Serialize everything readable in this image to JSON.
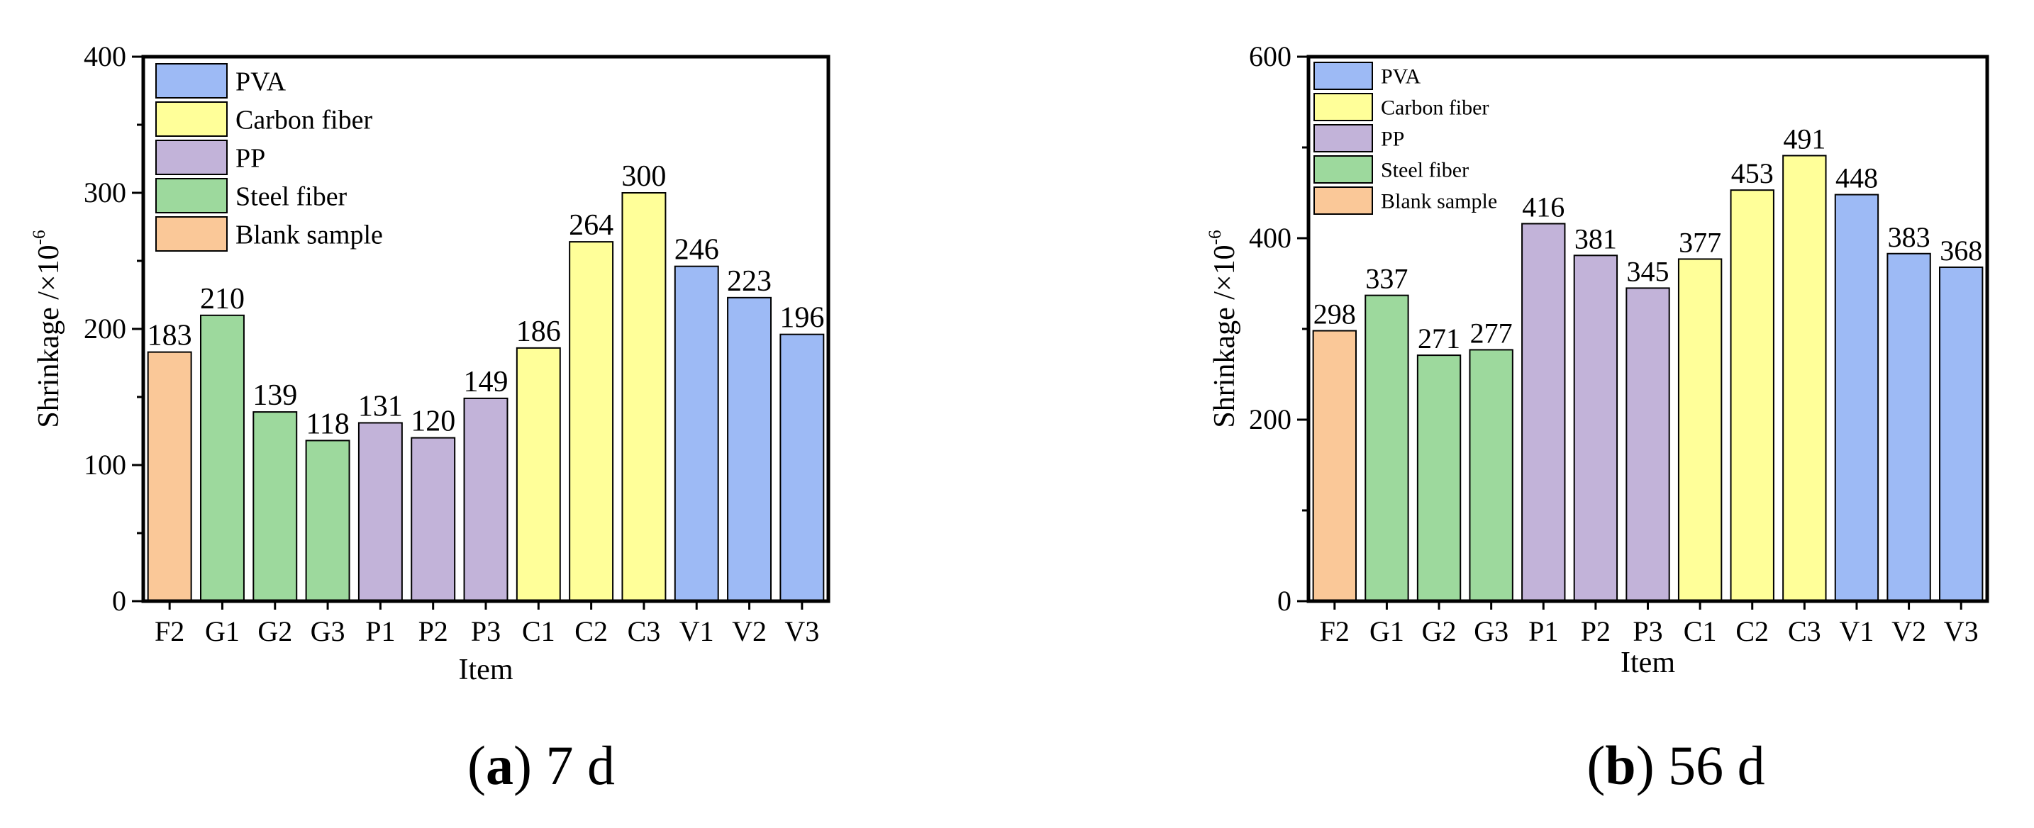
{
  "colors": {
    "PVA": "#9dbaf5",
    "Carbon fiber": "#ffff99",
    "PP": "#c2b3d9",
    "Steel fiber": "#9dd99d",
    "Blank sample": "#fac898"
  },
  "chart_data": [
    {
      "type": "bar",
      "title": "",
      "xlabel": "Item",
      "ylabel": "Shrinkage /×10",
      "ylabel_sup": "-6",
      "ylim": [
        0,
        400
      ],
      "yticks": [
        0,
        100,
        200,
        300,
        400
      ],
      "categories": [
        "F2",
        "G1",
        "G2",
        "G3",
        "P1",
        "P2",
        "P3",
        "C1",
        "C2",
        "C3",
        "V1",
        "V2",
        "V3"
      ],
      "values": [
        183,
        210,
        139,
        118,
        131,
        120,
        149,
        186,
        264,
        300,
        246,
        223,
        196
      ],
      "groups": [
        "Blank sample",
        "Steel fiber",
        "Steel fiber",
        "Steel fiber",
        "PP",
        "PP",
        "PP",
        "Carbon fiber",
        "Carbon fiber",
        "Carbon fiber",
        "PVA",
        "PVA",
        "PVA"
      ],
      "legend": [
        "PVA",
        "Carbon fiber",
        "PP",
        "Steel fiber",
        "Blank sample"
      ],
      "legend_position": "top-left",
      "caption_letter": "(a)",
      "caption_text": "7 d"
    },
    {
      "type": "bar",
      "title": "",
      "xlabel": "Item",
      "ylabel": "Shrinkage /×10",
      "ylabel_sup": "-6",
      "ylim": [
        0,
        600
      ],
      "yticks": [
        0,
        200,
        400,
        600
      ],
      "categories": [
        "F2",
        "G1",
        "G2",
        "G3",
        "P1",
        "P2",
        "P3",
        "C1",
        "C2",
        "C3",
        "V1",
        "V2",
        "V3"
      ],
      "values": [
        298,
        337,
        271,
        277,
        416,
        381,
        345,
        377,
        453,
        491,
        448,
        383,
        368
      ],
      "groups": [
        "Blank sample",
        "Steel fiber",
        "Steel fiber",
        "Steel fiber",
        "PP",
        "PP",
        "PP",
        "Carbon fiber",
        "Carbon fiber",
        "Carbon fiber",
        "PVA",
        "PVA",
        "PVA"
      ],
      "legend": [
        "PVA",
        "Carbon fiber",
        "PP",
        "Steel fiber",
        "Blank sample"
      ],
      "legend_position": "top-left",
      "caption_letter": "(b)",
      "caption_text": "56 d"
    }
  ]
}
